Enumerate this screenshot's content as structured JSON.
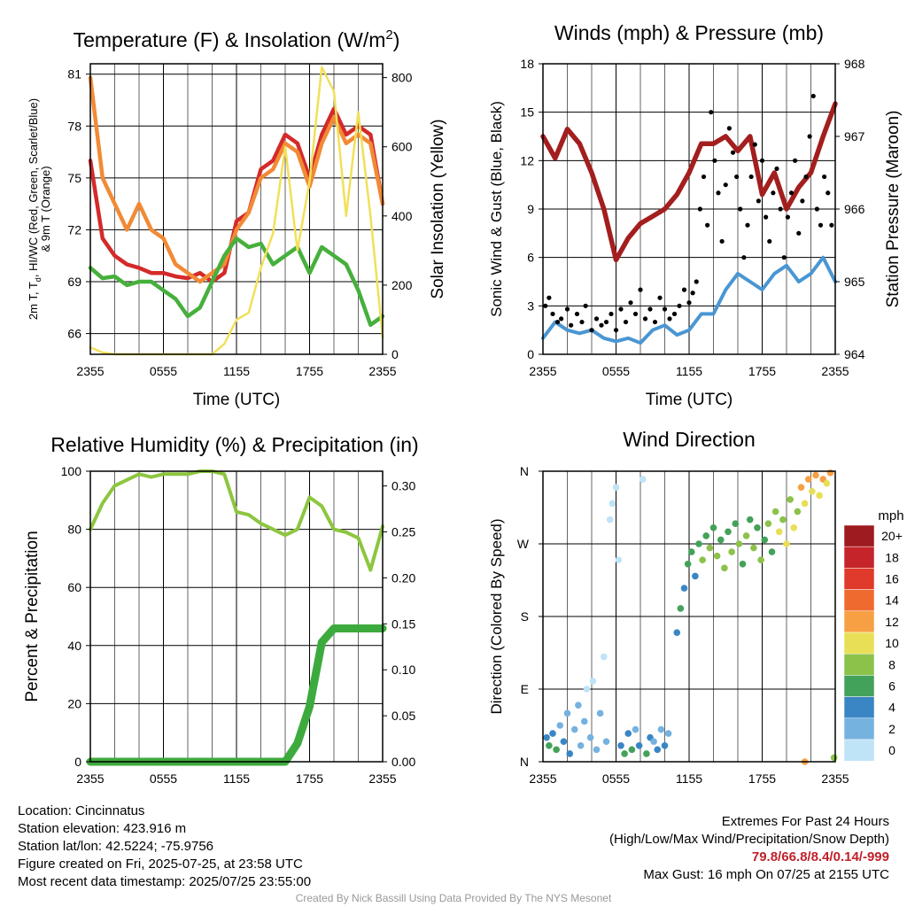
{
  "panels": {
    "temperature": {
      "title_main": "Temperature (F) & Insolation (W/m",
      "title_sup": "2",
      "title_end": ")",
      "ylabel_line1": "2m T, T",
      "ylabel_sub": "d",
      "ylabel_rest": ", HI/WC (Red, Green, Scarlet/Blue)",
      "ylabel_line2": "& 9m T (Orange)",
      "y2label": "Solar Insolation (Yellow)",
      "xlabel": "Time (UTC)"
    },
    "winds": {
      "title": "Winds (mph) & Pressure (mb)",
      "ylabel": "Sonic Wind & Gust (Blue, Black)",
      "y2label": "Station Pressure (Maroon)",
      "xlabel": "Time (UTC)"
    },
    "humidity": {
      "title": "Relative Humidity (%) & Precipitation (in)",
      "ylabel": "Percent & Precipitation"
    },
    "direction": {
      "title": "Wind Direction",
      "ylabel": "Direction (Colored By Speed)",
      "colorbar_title": "mph",
      "colorbar_labels": [
        "20+",
        "18",
        "16",
        "14",
        "12",
        "10",
        "8",
        "6",
        "4",
        "2",
        "0"
      ],
      "colorbar_colors": [
        "#9e1b20",
        "#c4242a",
        "#df3a2b",
        "#ef6a2e",
        "#f7a043",
        "#e8df56",
        "#8cc24a",
        "#43a259",
        "#3a86c4",
        "#76b2e0",
        "#bfe3f7"
      ]
    }
  },
  "footer": {
    "location": "Location: Cincinnatus",
    "elevation": "Station elevation: 423.916 m",
    "latlon": "Station lat/lon: 42.5224; -75.9756",
    "created": "Figure created on Fri, 2025-07-25, at 23:58 UTC",
    "recent": "Most recent data timestamp: 2025/07/25 23:55:00",
    "extremes_title": "Extremes For Past 24 Hours",
    "extremes_subtitle": "(High/Low/Max Wind/Precipitation/Snow Depth)",
    "extremes_values": "79.8/66.8/8.4/0.14/-999",
    "max_gust": "Max Gust: 16 mph On 07/25 at 2155 UTC",
    "credit": "Created By Nick Bassill Using Data Provided By The NYS Mesonet"
  },
  "chart_data": [
    {
      "type": "line",
      "x_ticks": [
        "2355",
        "0555",
        "1155",
        "1755",
        "2355"
      ],
      "x": [
        0,
        1,
        2,
        3,
        4,
        5,
        6,
        7,
        8,
        9,
        10,
        11,
        12,
        13,
        14,
        15,
        16,
        17,
        18,
        19,
        20,
        21,
        22,
        23,
        24
      ],
      "yticks_left": [
        66,
        69,
        72,
        75,
        78,
        81
      ],
      "ylim": [
        64.8,
        81.6
      ],
      "yticks_right": [
        0,
        200,
        400,
        600,
        800
      ],
      "y2lim": [
        0,
        840
      ],
      "series": [
        {
          "name": "2m T",
          "color": "#d42a2a",
          "axis": "left",
          "values": [
            76.0,
            71.5,
            70.5,
            70.0,
            69.8,
            69.5,
            69.5,
            69.3,
            69.2,
            69.5,
            69.0,
            69.5,
            72.5,
            73.0,
            75.5,
            76.0,
            77.5,
            77.0,
            75.0,
            77.5,
            79.0,
            77.5,
            78.0,
            77.5,
            73.5
          ]
        },
        {
          "name": "9m T",
          "color": "#f28a35",
          "axis": "left",
          "values": [
            80.8,
            75.0,
            73.5,
            72.0,
            73.5,
            72.0,
            71.5,
            70.0,
            69.5,
            69.0,
            69.5,
            70.0,
            72.0,
            73.0,
            75.0,
            75.5,
            77.0,
            76.5,
            74.5,
            77.0,
            78.5,
            77.0,
            77.5,
            77.0,
            73.5
          ]
        },
        {
          "name": "T_d",
          "color": "#46b03c",
          "axis": "left",
          "values": [
            69.8,
            69.2,
            69.3,
            68.8,
            69.0,
            69.0,
            68.5,
            68.0,
            67.0,
            67.5,
            69.0,
            70.5,
            71.5,
            71.0,
            71.2,
            70.0,
            70.5,
            71.0,
            69.5,
            71.0,
            70.5,
            70.0,
            68.5,
            66.5,
            67.0
          ]
        },
        {
          "name": "Solar",
          "color": "#f1e05a",
          "axis": "right",
          "values": [
            20,
            5,
            0,
            0,
            0,
            0,
            0,
            0,
            0,
            0,
            0,
            30,
            100,
            120,
            250,
            350,
            600,
            300,
            500,
            830,
            760,
            400,
            700,
            400,
            50
          ]
        }
      ]
    },
    {
      "type": "line",
      "x_ticks": [
        "2355",
        "0555",
        "1155",
        "1755",
        "2355"
      ],
      "x": [
        0,
        1,
        2,
        3,
        4,
        5,
        6,
        7,
        8,
        9,
        10,
        11,
        12,
        13,
        14,
        15,
        16,
        17,
        18,
        19,
        20,
        21,
        22,
        23,
        24
      ],
      "yticks_left": [
        0,
        3,
        6,
        9,
        12,
        15,
        18
      ],
      "ylim": [
        0,
        18
      ],
      "yticks_right": [
        964,
        965,
        966,
        967,
        968
      ],
      "y2lim": [
        964,
        968
      ],
      "series": [
        {
          "name": "Sonic Wind",
          "color": "#4a96d2",
          "axis": "left",
          "values": [
            1.0,
            2.0,
            1.5,
            1.3,
            1.5,
            1.0,
            0.8,
            1.0,
            0.7,
            1.5,
            1.8,
            1.2,
            1.5,
            2.5,
            2.5,
            4.0,
            5.0,
            4.5,
            4.0,
            5.0,
            5.5,
            4.5,
            5.0,
            6.0,
            4.5
          ]
        },
        {
          "name": "Pressure",
          "color": "#a31e1e",
          "axis": "right",
          "values": [
            967.0,
            966.7,
            967.1,
            966.9,
            966.5,
            966.0,
            965.3,
            965.6,
            965.8,
            965.9,
            966.0,
            966.2,
            966.5,
            966.9,
            966.9,
            967.0,
            966.8,
            967.0,
            966.2,
            966.5,
            966.0,
            966.3,
            966.5,
            967.0,
            967.45
          ]
        }
      ],
      "gust_points": {
        "name": "Gust",
        "color": "#000000",
        "x": [
          0.2,
          0.5,
          0.8,
          1.2,
          1.5,
          2.0,
          2.3,
          2.8,
          3.2,
          3.5,
          4.0,
          4.4,
          4.8,
          5.2,
          5.6,
          6.0,
          6.4,
          6.8,
          7.2,
          7.6,
          8.0,
          8.4,
          8.8,
          9.2,
          9.6,
          10.0,
          10.4,
          10.8,
          11.2,
          11.6,
          12.0,
          12.3,
          12.6,
          12.9,
          13.2,
          13.5,
          13.8,
          14.1,
          14.4,
          14.7,
          15.0,
          15.3,
          15.6,
          15.9,
          16.2,
          16.5,
          16.8,
          17.1,
          17.4,
          17.7,
          18.0,
          18.3,
          18.6,
          18.9,
          19.2,
          19.5,
          19.8,
          20.1,
          20.4,
          20.7,
          21.0,
          21.3,
          21.6,
          21.9,
          22.2,
          22.5,
          22.8,
          23.1,
          23.4,
          23.7
        ],
        "y": [
          3.0,
          3.5,
          2.5,
          2.0,
          2.2,
          2.8,
          1.8,
          2.5,
          2.0,
          3.0,
          1.5,
          2.2,
          1.8,
          2.0,
          2.5,
          1.5,
          2.8,
          2.0,
          3.2,
          2.5,
          4.0,
          2.2,
          2.8,
          2.0,
          3.5,
          2.8,
          2.2,
          2.5,
          3.0,
          4.0,
          3.2,
          3.8,
          4.5,
          9.0,
          11.0,
          8.0,
          15.0,
          12.0,
          10.0,
          7.0,
          10.5,
          14.0,
          12.5,
          11.0,
          9.0,
          6.0,
          8.0,
          11.0,
          13.0,
          9.5,
          12.0,
          8.5,
          7.0,
          10.0,
          11.5,
          9.0,
          6.0,
          8.5,
          10.0,
          12.0,
          7.5,
          9.5,
          11.0,
          13.5,
          16.0,
          9.0,
          8.0,
          11.0,
          10.0,
          8.0
        ]
      }
    },
    {
      "type": "line",
      "x_ticks": [
        "2355",
        "0555",
        "1155",
        "1755",
        "2355"
      ],
      "x": [
        0,
        1,
        2,
        3,
        4,
        5,
        6,
        7,
        8,
        9,
        10,
        11,
        12,
        13,
        14,
        15,
        16,
        17,
        18,
        19,
        20,
        21,
        22,
        23,
        24
      ],
      "yticks_left": [
        0,
        20,
        40,
        60,
        80,
        100
      ],
      "ylim": [
        0,
        100
      ],
      "yticks_right": [
        "0.00",
        "0.05",
        "0.10",
        "0.15",
        "0.20",
        "0.25",
        "0.30"
      ],
      "y2lim": [
        0,
        0.316
      ],
      "series": [
        {
          "name": "RH",
          "color": "#8cc63f",
          "axis": "left",
          "values": [
            80,
            89,
            95,
            97,
            99,
            98,
            99,
            99,
            99,
            100,
            100,
            99,
            86,
            85,
            82,
            80,
            78,
            80,
            91,
            88,
            80,
            79,
            77,
            66,
            81
          ]
        },
        {
          "name": "Precip",
          "color": "#3daa3d",
          "axis": "right",
          "values": [
            0,
            0,
            0,
            0,
            0,
            0,
            0,
            0,
            0,
            0,
            0,
            0,
            0,
            0,
            0,
            0,
            0,
            0.02,
            0.06,
            0.13,
            0.145,
            0.145,
            0.145,
            0.145,
            0.145
          ]
        }
      ]
    },
    {
      "type": "scatter",
      "x_ticks": [
        "2355",
        "0555",
        "1155",
        "1755",
        "2355"
      ],
      "y_ticks": [
        "N",
        "E",
        "S",
        "W",
        "N"
      ],
      "ylim": [
        0,
        360
      ],
      "points": [
        [
          0.3,
          30,
          2
        ],
        [
          0.5,
          20,
          3
        ],
        [
          0.8,
          35,
          2
        ],
        [
          1.1,
          15,
          3
        ],
        [
          1.4,
          45,
          1
        ],
        [
          1.7,
          25,
          2
        ],
        [
          2.0,
          60,
          1
        ],
        [
          2.2,
          10,
          2
        ],
        [
          2.6,
          40,
          1
        ],
        [
          2.9,
          70,
          1
        ],
        [
          3.1,
          20,
          1
        ],
        [
          3.4,
          50,
          1
        ],
        [
          3.6,
          90,
          0
        ],
        [
          3.9,
          30,
          1
        ],
        [
          4.1,
          100,
          0
        ],
        [
          4.4,
          15,
          1
        ],
        [
          4.7,
          60,
          1
        ],
        [
          5.0,
          130,
          0
        ],
        [
          5.2,
          25,
          1
        ],
        [
          5.5,
          300,
          0
        ],
        [
          5.7,
          320,
          0
        ],
        [
          6.0,
          340,
          0
        ],
        [
          6.2,
          250,
          0
        ],
        [
          6.4,
          20,
          2
        ],
        [
          6.7,
          10,
          3
        ],
        [
          7.0,
          35,
          2
        ],
        [
          7.3,
          15,
          3
        ],
        [
          7.6,
          40,
          1
        ],
        [
          7.9,
          20,
          2
        ],
        [
          8.2,
          350,
          0
        ],
        [
          8.5,
          10,
          3
        ],
        [
          8.8,
          30,
          2
        ],
        [
          9.1,
          25,
          1
        ],
        [
          9.4,
          15,
          2
        ],
        [
          9.7,
          40,
          1
        ],
        [
          10.0,
          20,
          2
        ],
        [
          10.3,
          35,
          1
        ],
        [
          11.0,
          160,
          2
        ],
        [
          11.3,
          190,
          3
        ],
        [
          11.6,
          215,
          2
        ],
        [
          11.9,
          245,
          3
        ],
        [
          12.2,
          260,
          3
        ],
        [
          12.5,
          230,
          2
        ],
        [
          12.8,
          270,
          3
        ],
        [
          13.1,
          250,
          4
        ],
        [
          13.4,
          280,
          3
        ],
        [
          13.7,
          265,
          4
        ],
        [
          14.0,
          290,
          3
        ],
        [
          14.3,
          255,
          4
        ],
        [
          14.6,
          275,
          3
        ],
        [
          14.9,
          240,
          4
        ],
        [
          15.2,
          285,
          3
        ],
        [
          15.5,
          260,
          4
        ],
        [
          15.8,
          295,
          3
        ],
        [
          16.1,
          270,
          4
        ],
        [
          16.4,
          245,
          3
        ],
        [
          16.7,
          280,
          4
        ],
        [
          17.0,
          300,
          3
        ],
        [
          17.3,
          265,
          4
        ],
        [
          17.6,
          290,
          3
        ],
        [
          17.9,
          250,
          4
        ],
        [
          18.2,
          275,
          3
        ],
        [
          18.5,
          295,
          4
        ],
        [
          18.8,
          260,
          3
        ],
        [
          19.1,
          310,
          4
        ],
        [
          19.4,
          285,
          5
        ],
        [
          19.7,
          300,
          4
        ],
        [
          20.0,
          270,
          5
        ],
        [
          20.3,
          325,
          4
        ],
        [
          20.6,
          290,
          5
        ],
        [
          20.9,
          310,
          4
        ],
        [
          21.2,
          340,
          6
        ],
        [
          21.5,
          320,
          5
        ],
        [
          21.8,
          350,
          6
        ],
        [
          22.1,
          335,
          5
        ],
        [
          22.4,
          355,
          6
        ],
        [
          22.7,
          330,
          5
        ],
        [
          23.0,
          350,
          6
        ],
        [
          23.3,
          345,
          5
        ],
        [
          23.6,
          358,
          6
        ],
        [
          23.9,
          5,
          4
        ],
        [
          21.5,
          0,
          6
        ]
      ]
    }
  ]
}
